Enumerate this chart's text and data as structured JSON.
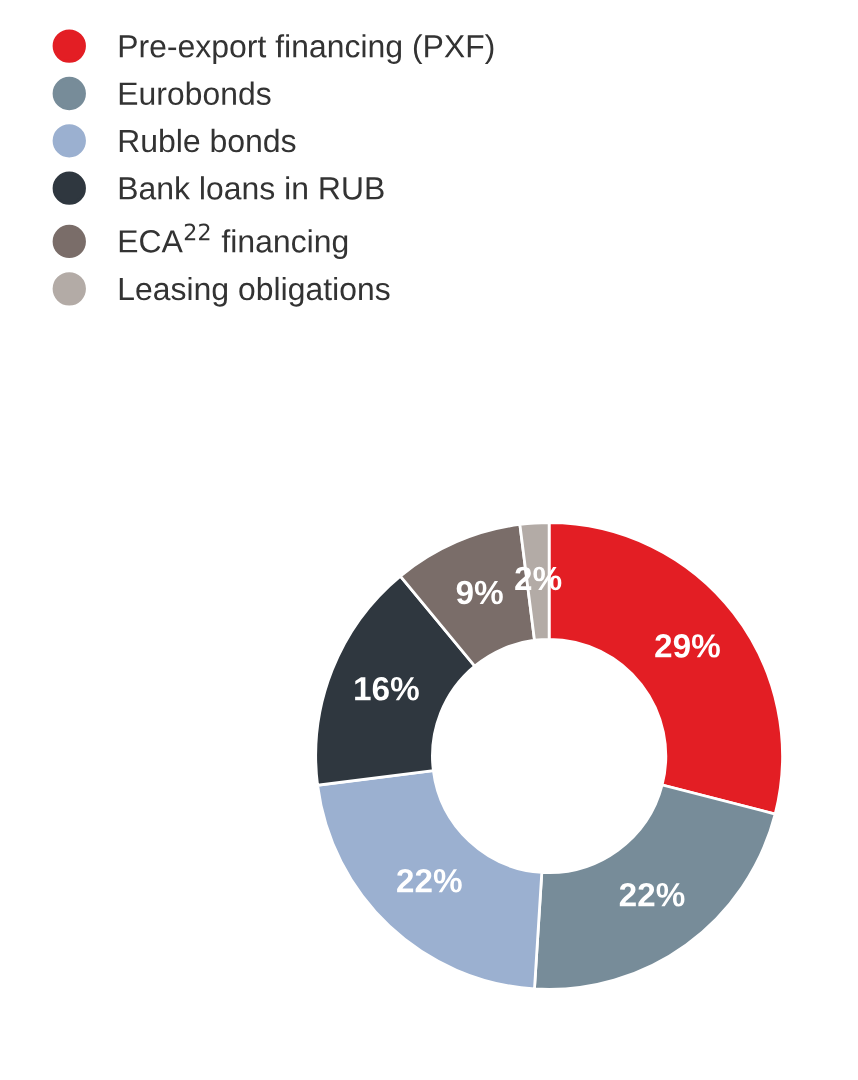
{
  "chart_data": {
    "type": "donut",
    "categories": [
      "Pre-export financing (PXF)",
      "Eurobonds",
      "Ruble bonds",
      "Bank loans in RUB",
      "ECA$^{22}$ financing",
      "Leasing obligations"
    ],
    "values": [
      29,
      22,
      22,
      16,
      9,
      2
    ],
    "value_labels": [
      "29%",
      "22%",
      "22%",
      "16%",
      "9%",
      "2%"
    ],
    "colors": [
      "#e31e24",
      "#778c99",
      "#9bb0d0",
      "#2f373f",
      "#7a6d69",
      "#b3aba6"
    ],
    "legend": "top left"
  }
}
